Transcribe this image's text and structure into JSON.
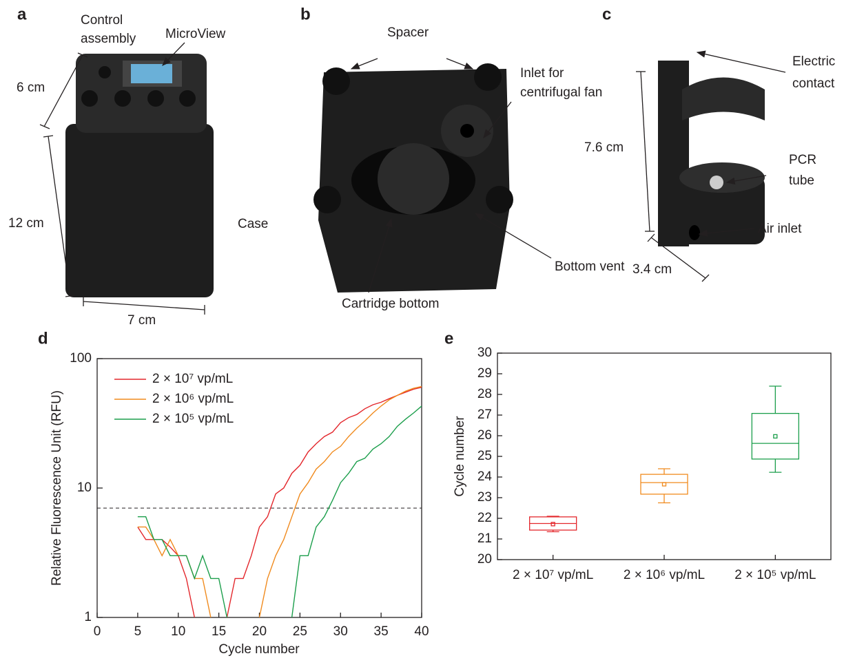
{
  "photos": [
    {
      "letter": "a",
      "control": [
        "Control",
        "assembly"
      ],
      "microview": "MicroView",
      "height_top": "6 cm",
      "height_case": "12 cm",
      "case": "Case",
      "width": "7 cm"
    },
    {
      "letter": "b",
      "spacer": "Spacer",
      "inlet": [
        "Inlet for",
        "centrifugal fan"
      ],
      "vent": "Bottom vent",
      "cartridge": "Cartridge bottom"
    },
    {
      "letter": "c",
      "contact": [
        "Electric",
        "contact"
      ],
      "height": "7.6 cm",
      "tube": [
        "PCR",
        "tube"
      ],
      "air": "Air inlet",
      "width": "3.4 cm"
    }
  ],
  "chart_data": [
    {
      "type": "line",
      "letter": "d",
      "xlabel": "Cycle number",
      "ylabel": "Relative Fluorescence Unit (RFU)",
      "yscale": "log",
      "xlim": [
        0,
        40
      ],
      "xticks": [
        0,
        5,
        10,
        15,
        20,
        25,
        30,
        35,
        40
      ],
      "ylim": [
        1,
        100
      ],
      "yticks": [
        1,
        10,
        100
      ],
      "threshold": 7,
      "x": [
        5,
        6,
        7,
        8,
        9,
        10,
        11,
        12,
        13,
        14,
        15,
        16,
        17,
        18,
        19,
        20,
        21,
        22,
        23,
        24,
        25,
        26,
        27,
        28,
        29,
        30,
        31,
        32,
        33,
        34,
        35,
        36,
        37,
        38,
        39,
        40
      ],
      "series": [
        {
          "name": "2 × 10⁷ vp/mL",
          "color": "#e3262b",
          "values": [
            5,
            4,
            4,
            4,
            3.5,
            3,
            2,
            1,
            null,
            null,
            null,
            1,
            2,
            2,
            3,
            5,
            6,
            9,
            10,
            13,
            15,
            19,
            22,
            25,
            27,
            32,
            35,
            37,
            41,
            44,
            46,
            49,
            52,
            55,
            58,
            60
          ]
        },
        {
          "name": "2 × 10⁶ vp/mL",
          "color": "#f08a1d",
          "values": [
            5,
            5,
            4,
            3,
            4,
            3,
            3,
            2,
            2,
            1,
            null,
            null,
            null,
            null,
            null,
            1,
            2,
            3,
            4,
            6,
            9,
            11,
            14,
            16,
            19,
            21,
            25,
            29,
            33,
            38,
            43,
            48,
            52,
            56,
            59,
            61
          ]
        },
        {
          "name": "2 × 10⁵ vp/mL",
          "color": "#1b9e4b",
          "values": [
            6,
            6,
            4,
            4,
            3,
            3,
            3,
            2,
            3,
            2,
            2,
            1,
            null,
            null,
            null,
            null,
            null,
            null,
            null,
            1,
            3,
            3,
            5,
            6,
            8,
            11,
            13,
            16,
            17,
            20,
            22,
            25,
            30,
            34,
            38,
            43
          ]
        }
      ]
    },
    {
      "type": "box",
      "letter": "e",
      "ylabel": "Cycle number",
      "ylim": [
        20,
        30
      ],
      "yticks": [
        20,
        21,
        22,
        23,
        24,
        25,
        26,
        27,
        28,
        29,
        30
      ],
      "categories": [
        "2 × 10⁷ vp/mL",
        "2 × 10⁶ vp/mL",
        "2 × 10⁵ vp/mL"
      ],
      "boxes": [
        {
          "color": "#e3262b",
          "min": 21.35,
          "q1": 21.43,
          "median": 21.75,
          "q3": 22.07,
          "max": 22.1,
          "mean": 21.72
        },
        {
          "color": "#f08a1d",
          "min": 22.75,
          "q1": 23.17,
          "median": 23.73,
          "q3": 24.13,
          "max": 24.4,
          "mean": 23.65
        },
        {
          "color": "#1b9e4b",
          "min": 24.23,
          "q1": 24.87,
          "median": 25.63,
          "q3": 27.08,
          "max": 28.4,
          "mean": 25.97
        }
      ]
    }
  ]
}
